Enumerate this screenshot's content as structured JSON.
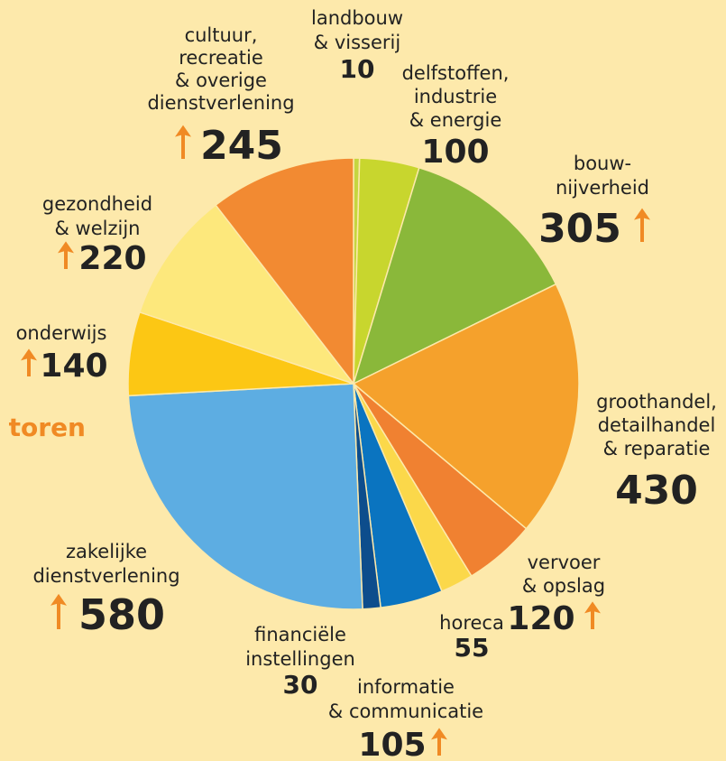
{
  "chart_data": {
    "type": "pie",
    "title": "toren",
    "categories": [
      [
        "landbouw",
        "& visserij"
      ],
      [
        "delfstoffen,",
        "industrie",
        "& energie"
      ],
      [
        "bouw-",
        "nijverheid"
      ],
      [
        "groothandel,",
        "detailhandel",
        "& reparatie"
      ],
      [
        "vervoer",
        "& opslag"
      ],
      [
        "horeca"
      ],
      [
        "informatie",
        "& communicatie"
      ],
      [
        "financiële",
        "instellingen"
      ],
      [
        "zakelijke",
        "dienstverlening"
      ],
      [
        "onderwijs"
      ],
      [
        "gezondheid",
        "& welzijn"
      ],
      [
        "cultuur,",
        "recreatie",
        "& overige",
        "dienstverlening"
      ]
    ],
    "values": [
      10,
      100,
      305,
      430,
      120,
      55,
      105,
      30,
      580,
      140,
      220,
      245
    ],
    "colors": [
      "#c5d640",
      "#c8d62e",
      "#8ab83a",
      "#f5a12c",
      "#f08131",
      "#fbd84a",
      "#0a74c0",
      "#0d4d8c",
      "#5dade2",
      "#fcc714",
      "#fde87c",
      "#f28a32"
    ],
    "growth": [
      false,
      false,
      true,
      false,
      true,
      false,
      true,
      false,
      true,
      true,
      true,
      true
    ]
  }
}
